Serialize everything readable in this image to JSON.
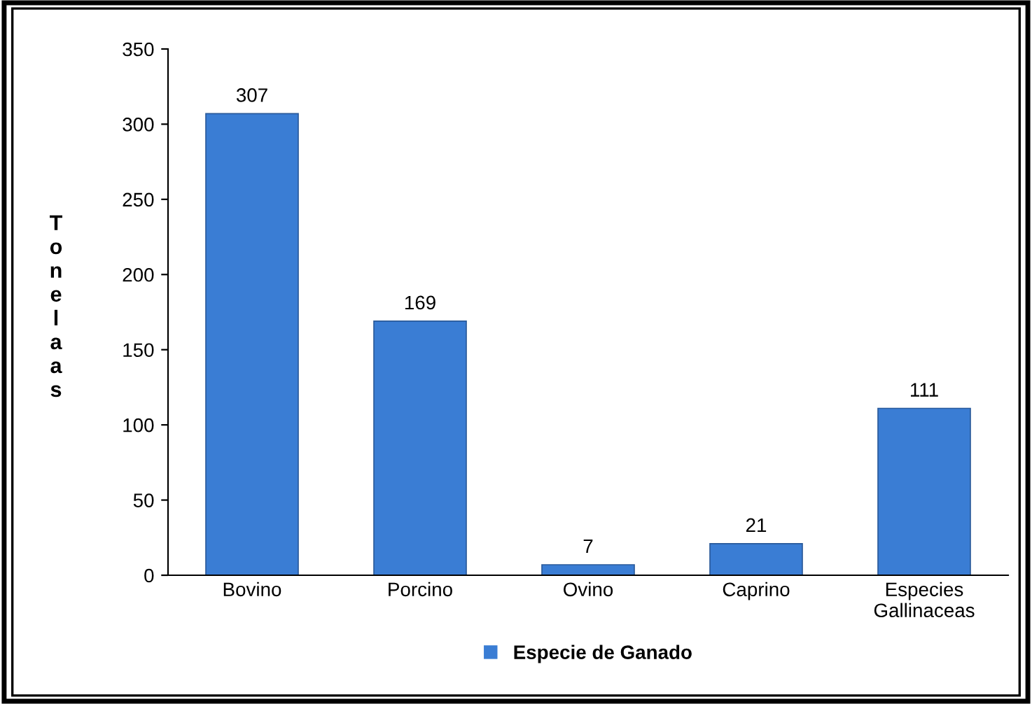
{
  "chart_data": {
    "type": "bar",
    "categories": [
      "Bovino",
      "Porcino",
      "Ovino",
      "Caprino",
      "Especies\nGallinaceas"
    ],
    "series": [
      {
        "name": "Especie de Ganado",
        "color": "#3a7dd4",
        "values": [
          307,
          169,
          7,
          21,
          111
        ]
      }
    ],
    "ylabel": "Tonelaas",
    "ylim": [
      0,
      350
    ],
    "yticks": [
      0,
      50,
      100,
      150,
      200,
      250,
      300,
      350
    ],
    "data_labels": true,
    "grid": false,
    "legend": "bottom"
  }
}
